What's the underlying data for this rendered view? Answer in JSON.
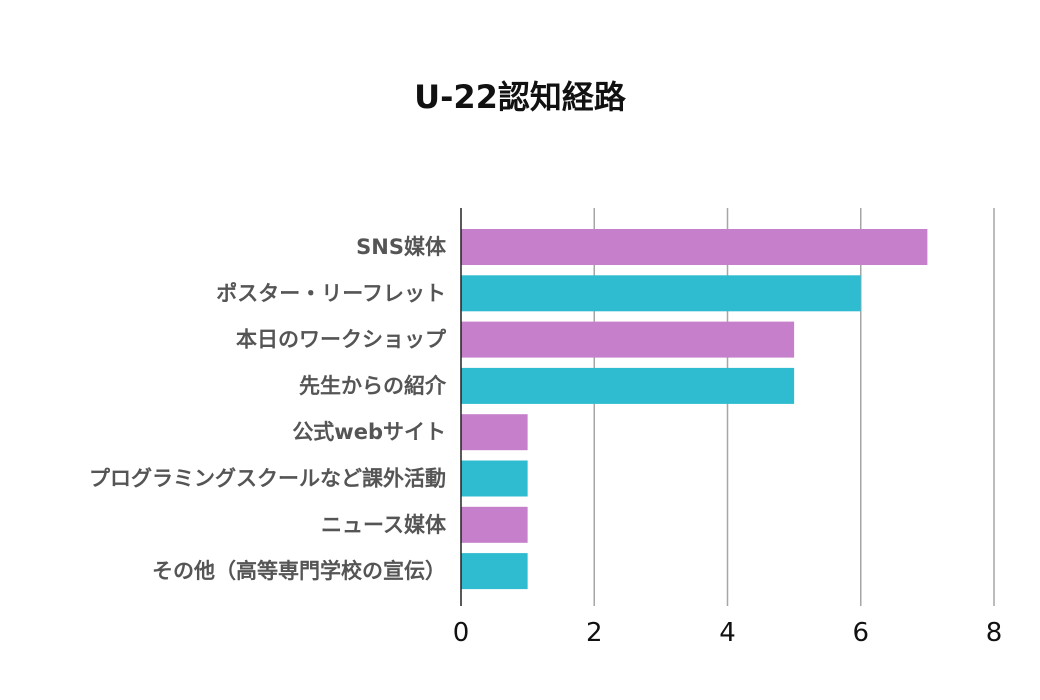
{
  "chart_data": {
    "type": "bar",
    "orientation": "horizontal",
    "title": "U-22認知経路",
    "xlabel": "",
    "ylabel": "",
    "categories": [
      "SNS媒体",
      "ポスター・リーフレット",
      "本日のワークショップ",
      "先生からの紹介",
      "公式webサイト",
      "プログラミングスクールなど課外活動",
      "ニュース媒体",
      "その他（高等専門学校の宣伝）"
    ],
    "values": [
      7,
      6,
      5,
      5,
      1,
      1,
      1,
      1
    ],
    "bar_colors": [
      "#c57fcb",
      "#2fbcd0",
      "#c57fcb",
      "#2fbcd0",
      "#c57fcb",
      "#2fbcd0",
      "#c57fcb",
      "#2fbcd0"
    ],
    "xlim": [
      0,
      8
    ],
    "xticks": [
      "0",
      "2",
      "4",
      "6",
      "8"
    ],
    "grid": "vertical",
    "legend": "none"
  }
}
